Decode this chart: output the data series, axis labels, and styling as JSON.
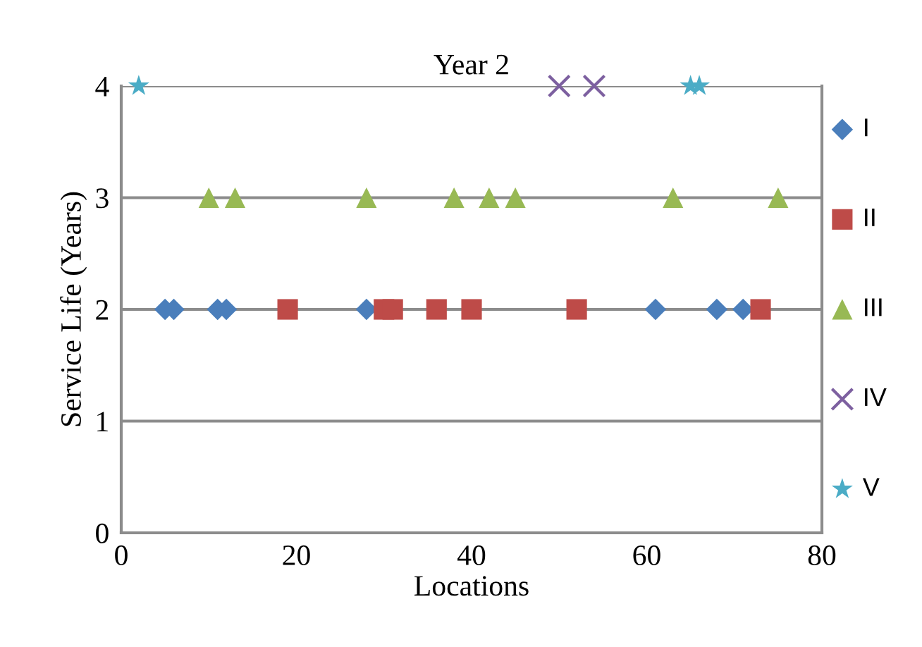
{
  "chart_data": {
    "type": "scatter",
    "title": "Year 2",
    "xlabel": "Locations",
    "ylabel": "Service Life (Years)",
    "xlim": [
      0,
      80
    ],
    "xticks": [
      0,
      20,
      40,
      60,
      80
    ],
    "ylim": [
      0,
      4
    ],
    "yticks": [
      0,
      1,
      2,
      3,
      4
    ],
    "grid": "y",
    "legend": "right",
    "series": [
      {
        "name": "I",
        "color": "#4a7ebb",
        "marker": "diamond",
        "x": [
          5,
          6,
          11,
          12,
          28,
          61,
          68,
          71
        ],
        "values": [
          2,
          2,
          2,
          2,
          2,
          2,
          2,
          2
        ]
      },
      {
        "name": "II",
        "color": "#be4b48",
        "marker": "square",
        "x": [
          19,
          30,
          31,
          36,
          40,
          52,
          73
        ],
        "values": [
          2,
          2,
          2,
          2,
          2,
          2,
          2
        ]
      },
      {
        "name": "III",
        "color": "#98b954",
        "marker": "triangle",
        "x": [
          10,
          13,
          28,
          38,
          42,
          45,
          63,
          75
        ],
        "values": [
          3,
          3,
          3,
          3,
          3,
          3,
          3,
          3
        ]
      },
      {
        "name": "IV",
        "color": "#7d60a0",
        "marker": "cross",
        "x": [
          50,
          54
        ],
        "values": [
          4,
          4
        ]
      },
      {
        "name": "V",
        "color": "#4bacc6",
        "marker": "star",
        "x": [
          2,
          65,
          66
        ],
        "values": [
          4,
          4,
          4
        ]
      }
    ]
  }
}
